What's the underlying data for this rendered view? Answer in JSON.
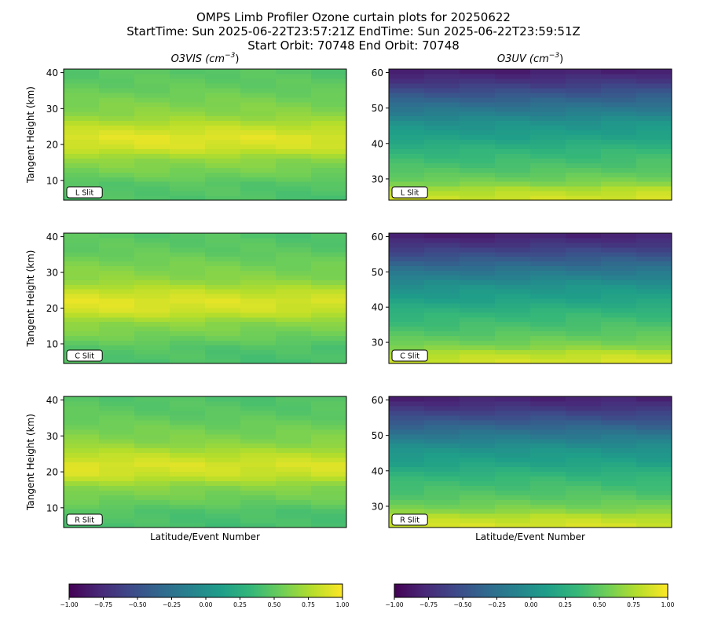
{
  "header": {
    "title_line1": "OMPS Limb Profiler Ozone curtain plots for 20250622",
    "title_line2": "StartTime: Sun 2025-06-22T23:57:21Z  EndTime: Sun 2025-06-22T23:59:51Z",
    "title_line3": "Start Orbit: 70748 End Orbit: 70748"
  },
  "chart_data": [
    {
      "id": "vis-l",
      "type": "heatmap",
      "column": "O3VIS",
      "slit": "L Slit",
      "title_main": "O3VIS",
      "title_unit_base": "(cm",
      "title_unit_exp": "−3",
      "title_unit_close": ")",
      "ylabel": "Tangent Height (km)",
      "xlabel": "",
      "ylim": [
        4.5,
        41
      ],
      "yticks": [
        10,
        20,
        30,
        40
      ],
      "x_categories": 8,
      "color_range": [
        -1,
        1
      ],
      "profile": [
        [
          4.5,
          0.42
        ],
        [
          9,
          0.45
        ],
        [
          12,
          0.55
        ],
        [
          16,
          0.65
        ],
        [
          19,
          0.85
        ],
        [
          22,
          0.9
        ],
        [
          25,
          0.8
        ],
        [
          28,
          0.65
        ],
        [
          32,
          0.58
        ],
        [
          36,
          0.5
        ],
        [
          41,
          0.45
        ]
      ]
    },
    {
      "id": "uv-l",
      "type": "heatmap",
      "column": "O3UV",
      "slit": "L Slit",
      "title_main": "O3UV",
      "title_unit_base": "(cm",
      "title_unit_exp": "−3",
      "title_unit_close": ")",
      "ylabel": "",
      "xlabel": "",
      "ylim": [
        24,
        61
      ],
      "yticks": [
        30,
        40,
        50,
        60
      ],
      "x_categories": 8,
      "color_range": [
        -1,
        1
      ],
      "profile": [
        [
          24,
          0.88
        ],
        [
          27,
          0.78
        ],
        [
          29,
          0.6
        ],
        [
          33,
          0.45
        ],
        [
          38,
          0.32
        ],
        [
          42,
          0.15
        ],
        [
          46,
          0.02
        ],
        [
          50,
          -0.2
        ],
        [
          54,
          -0.45
        ],
        [
          58,
          -0.7
        ],
        [
          61,
          -0.85
        ]
      ]
    },
    {
      "id": "vis-c",
      "type": "heatmap",
      "column": "O3VIS",
      "slit": "C Slit",
      "ylabel": "Tangent Height (km)",
      "xlabel": "",
      "ylim": [
        4.5,
        41
      ],
      "yticks": [
        10,
        20,
        30,
        40
      ],
      "x_categories": 8,
      "color_range": [
        -1,
        1
      ],
      "profile": [
        [
          4.5,
          0.42
        ],
        [
          9,
          0.45
        ],
        [
          12,
          0.55
        ],
        [
          16,
          0.65
        ],
        [
          19,
          0.85
        ],
        [
          22,
          0.9
        ],
        [
          25,
          0.8
        ],
        [
          28,
          0.65
        ],
        [
          32,
          0.58
        ],
        [
          36,
          0.5
        ],
        [
          41,
          0.45
        ]
      ]
    },
    {
      "id": "uv-c",
      "type": "heatmap",
      "column": "O3UV",
      "slit": "C Slit",
      "ylabel": "",
      "xlabel": "",
      "ylim": [
        24,
        61
      ],
      "yticks": [
        30,
        40,
        50,
        60
      ],
      "x_categories": 8,
      "color_range": [
        -1,
        1
      ],
      "profile": [
        [
          24,
          0.88
        ],
        [
          27,
          0.78
        ],
        [
          29,
          0.6
        ],
        [
          33,
          0.45
        ],
        [
          38,
          0.32
        ],
        [
          42,
          0.15
        ],
        [
          46,
          0.02
        ],
        [
          50,
          -0.2
        ],
        [
          54,
          -0.45
        ],
        [
          58,
          -0.7
        ],
        [
          61,
          -0.85
        ]
      ]
    },
    {
      "id": "vis-r",
      "type": "heatmap",
      "column": "O3VIS",
      "slit": "R Slit",
      "ylabel": "Tangent Height (km)",
      "xlabel": "Latitude/Event Number",
      "ylim": [
        4.5,
        41
      ],
      "yticks": [
        10,
        20,
        30,
        40
      ],
      "x_categories": 8,
      "color_range": [
        -1,
        1
      ],
      "profile": [
        [
          4.5,
          0.42
        ],
        [
          9,
          0.45
        ],
        [
          12,
          0.55
        ],
        [
          16,
          0.65
        ],
        [
          19,
          0.85
        ],
        [
          22,
          0.9
        ],
        [
          25,
          0.8
        ],
        [
          28,
          0.65
        ],
        [
          32,
          0.58
        ],
        [
          36,
          0.5
        ],
        [
          41,
          0.45
        ]
      ]
    },
    {
      "id": "uv-r",
      "type": "heatmap",
      "column": "O3UV",
      "slit": "R Slit",
      "ylabel": "",
      "xlabel": "Latitude/Event Number",
      "ylim": [
        24,
        61
      ],
      "yticks": [
        30,
        40,
        50,
        60
      ],
      "x_categories": 8,
      "color_range": [
        -1,
        1
      ],
      "profile": [
        [
          24,
          0.88
        ],
        [
          27,
          0.78
        ],
        [
          29,
          0.6
        ],
        [
          33,
          0.45
        ],
        [
          38,
          0.32
        ],
        [
          42,
          0.15
        ],
        [
          46,
          0.02
        ],
        [
          50,
          -0.2
        ],
        [
          54,
          -0.45
        ],
        [
          58,
          -0.7
        ],
        [
          61,
          -0.85
        ]
      ]
    }
  ],
  "colorbars": [
    {
      "id": "cb-vis",
      "range": [
        -1,
        1
      ],
      "ticks": [
        "−1.00",
        "−0.75",
        "−0.50",
        "−0.25",
        "0.00",
        "0.25",
        "0.50",
        "0.75",
        "1.00"
      ],
      "colormap": "viridis"
    },
    {
      "id": "cb-uv",
      "range": [
        -1,
        1
      ],
      "ticks": [
        "−1.00",
        "−0.75",
        "−0.50",
        "−0.25",
        "0.00",
        "0.25",
        "0.50",
        "0.75",
        "1.00"
      ],
      "colormap": "viridis"
    }
  ]
}
